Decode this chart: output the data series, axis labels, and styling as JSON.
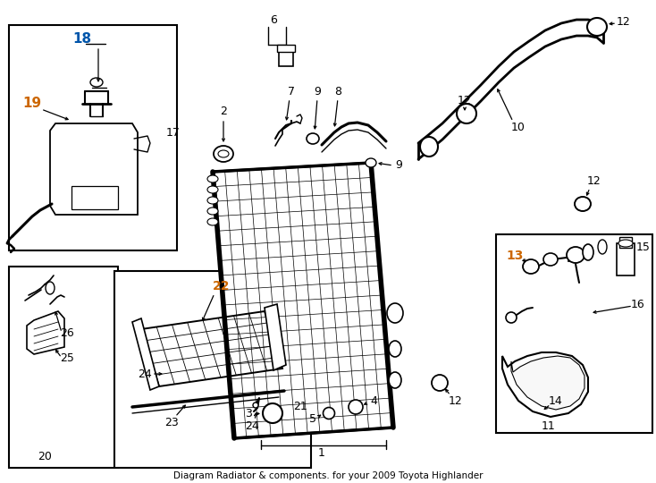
{
  "title": "Diagram Radiator & components. for your 2009 Toyota Highlander",
  "bg_color": "#ffffff",
  "line_color": "#000000",
  "orange": "#cc6600",
  "blue": "#0055aa",
  "fig_width": 7.34,
  "fig_height": 5.4,
  "dpi": 100
}
